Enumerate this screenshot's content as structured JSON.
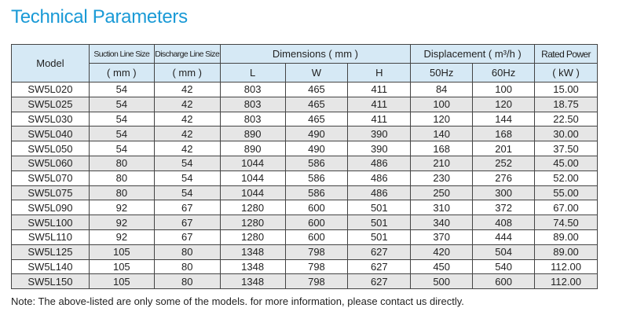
{
  "title": "Technical Parameters",
  "headers": {
    "model": "Model",
    "suction": "Suction Line Size",
    "suction_unit": "( mm )",
    "discharge": "Discharge Line Size",
    "discharge_unit": "( mm )",
    "dimensions": "Dimensions ( mm )",
    "L": "L",
    "W": "W",
    "H": "H",
    "displacement": "Displacement ( m³/h )",
    "hz50": "50Hz",
    "hz60": "60Hz",
    "power": "Rated Power",
    "power_unit": "( kW )"
  },
  "rows": [
    [
      "SW5L020",
      "54",
      "42",
      "803",
      "465",
      "411",
      "84",
      "100",
      "15.00"
    ],
    [
      "SW5L025",
      "54",
      "42",
      "803",
      "465",
      "411",
      "100",
      "120",
      "18.75"
    ],
    [
      "SW5L030",
      "54",
      "42",
      "803",
      "465",
      "411",
      "120",
      "144",
      "22.50"
    ],
    [
      "SW5L040",
      "54",
      "42",
      "890",
      "490",
      "390",
      "140",
      "168",
      "30.00"
    ],
    [
      "SW5L050",
      "54",
      "42",
      "890",
      "490",
      "390",
      "168",
      "201",
      "37.50"
    ],
    [
      "SW5L060",
      "80",
      "54",
      "1044",
      "586",
      "486",
      "210",
      "252",
      "45.00"
    ],
    [
      "SW5L070",
      "80",
      "54",
      "1044",
      "586",
      "486",
      "230",
      "276",
      "52.00"
    ],
    [
      "SW5L075",
      "80",
      "54",
      "1044",
      "586",
      "486",
      "250",
      "300",
      "55.00"
    ],
    [
      "SW5L090",
      "92",
      "67",
      "1280",
      "600",
      "501",
      "310",
      "372",
      "67.00"
    ],
    [
      "SW5L100",
      "92",
      "67",
      "1280",
      "600",
      "501",
      "340",
      "408",
      "74.50"
    ],
    [
      "SW5L110",
      "92",
      "67",
      "1280",
      "600",
      "501",
      "370",
      "444",
      "89.00"
    ],
    [
      "SW5L125",
      "105",
      "80",
      "1348",
      "798",
      "627",
      "420",
      "504",
      "89.00"
    ],
    [
      "SW5L140",
      "105",
      "80",
      "1348",
      "798",
      "627",
      "450",
      "540",
      "112.00"
    ],
    [
      "SW5L150",
      "105",
      "80",
      "1348",
      "798",
      "627",
      "500",
      "600",
      "112.00"
    ]
  ],
  "note": "Note:  The above-listed are only some of the models. for more information, please contact us directly."
}
